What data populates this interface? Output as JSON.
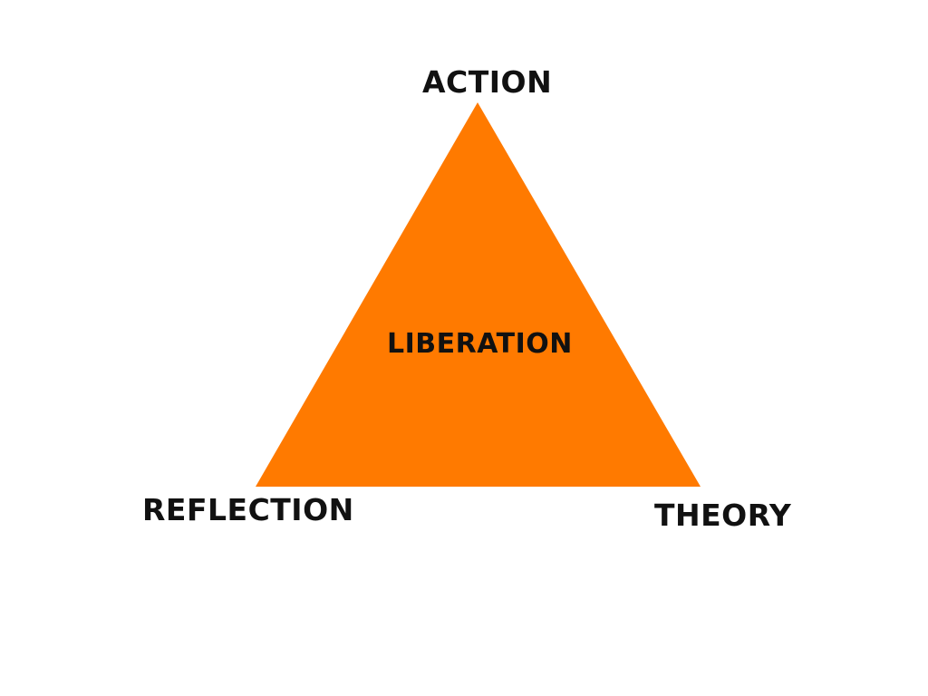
{
  "diagram": {
    "vertices": {
      "top": "ACTION",
      "bottom_left": "REFLECTION",
      "bottom_right": "THEORY"
    },
    "center": "LIBERATION",
    "colors": {
      "triangle_fill": "#FF7A00",
      "text": "#111111",
      "background": "#FFFFFF"
    }
  }
}
